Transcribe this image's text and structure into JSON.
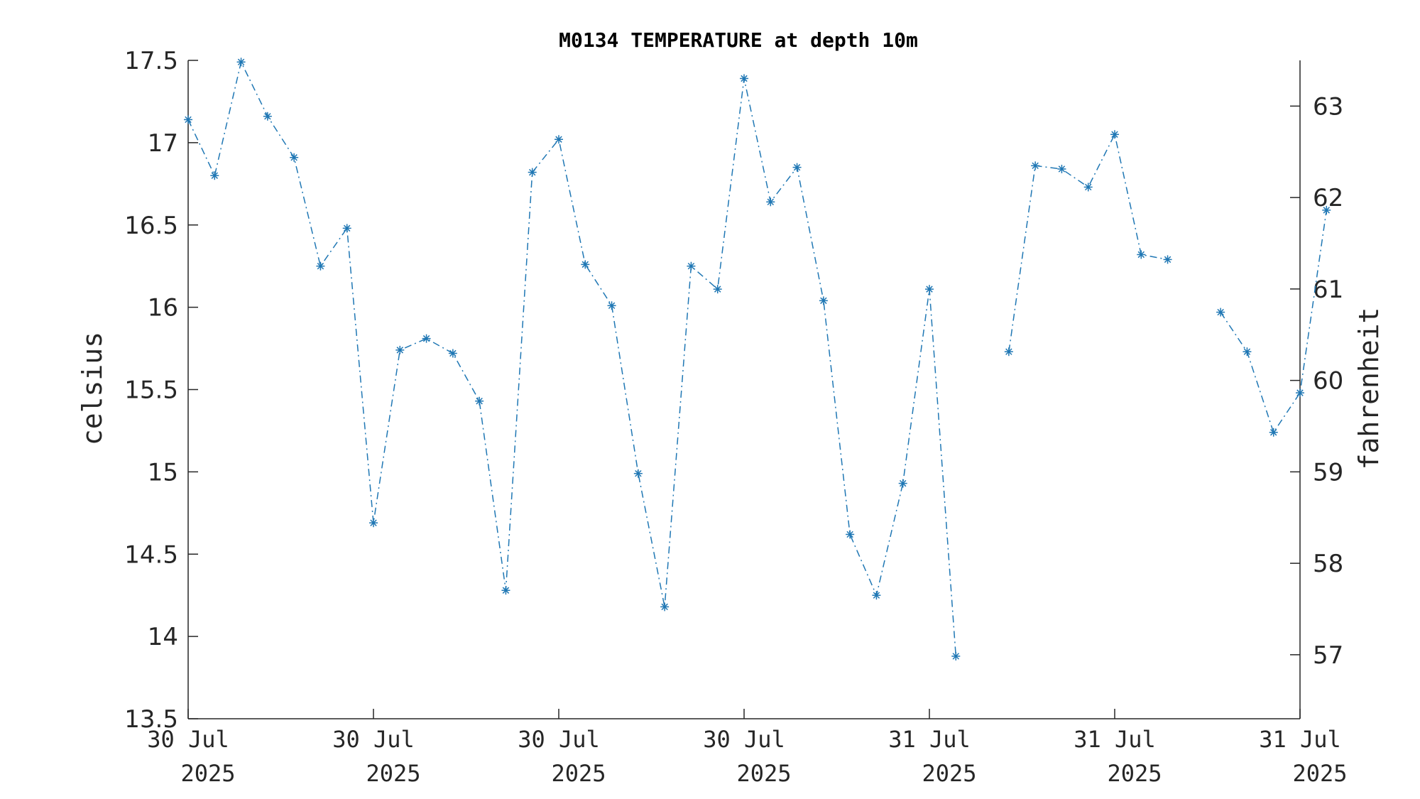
{
  "chart_data": {
    "type": "line",
    "title": "M0134 TEMPERATURE at depth 10m",
    "ylabel": "celsius",
    "y2label": "fahrenheit",
    "ylim": [
      13.5,
      17.5
    ],
    "y2lim": [
      56.3,
      63.5
    ],
    "y_ticks": [
      "13.5",
      "14",
      "14.5",
      "15",
      "15.5",
      "16",
      "16.5",
      "17",
      "17.5"
    ],
    "y2_ticks": [
      "57",
      "58",
      "59",
      "60",
      "61",
      "62",
      "63"
    ],
    "x_ticks": [
      {
        "line1": "30 Jul",
        "line2": "2025"
      },
      {
        "line1": "30 Jul",
        "line2": "2025"
      },
      {
        "line1": "30 Jul",
        "line2": "2025"
      },
      {
        "line1": "30 Jul",
        "line2": "2025"
      },
      {
        "line1": "31 Jul",
        "line2": "2025"
      },
      {
        "line1": "31 Jul",
        "line2": "2025"
      },
      {
        "line1": "31 Jul",
        "line2": "2025"
      }
    ],
    "x_index_range": [
      0,
      42
    ],
    "line_style": "dash-dot",
    "marker": "asterisk",
    "color": "#1f77b4",
    "series": [
      {
        "values": [
          17.14,
          16.8,
          17.49,
          17.16,
          16.91,
          16.25,
          16.48,
          14.69,
          15.74,
          15.81,
          15.72,
          15.43,
          14.28,
          16.82,
          17.02,
          16.26,
          16.01,
          14.99,
          14.18,
          16.25,
          16.11,
          17.39,
          16.64,
          16.85,
          16.04,
          14.62,
          14.25,
          14.93,
          16.11,
          13.88,
          null,
          15.73,
          16.86,
          16.84,
          16.73,
          17.05,
          16.32,
          16.29,
          null,
          15.97,
          15.73,
          15.24,
          15.48,
          16.59
        ]
      }
    ],
    "grid": false
  }
}
